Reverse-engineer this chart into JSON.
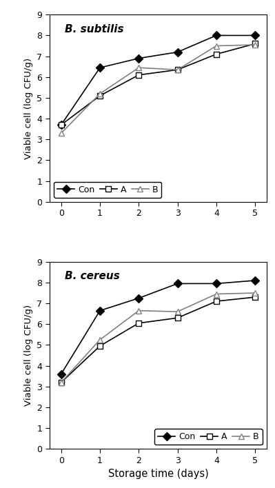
{
  "x": [
    0,
    1,
    2,
    3,
    4,
    5
  ],
  "subtilis": {
    "Con": [
      3.7,
      6.45,
      6.9,
      7.2,
      8.0,
      8.0
    ],
    "A": [
      3.7,
      5.1,
      6.1,
      6.35,
      7.1,
      7.6
    ],
    "B": [
      3.3,
      5.2,
      6.45,
      6.35,
      7.5,
      7.55
    ]
  },
  "cereus": {
    "Con": [
      3.6,
      6.65,
      7.25,
      7.95,
      7.95,
      8.1
    ],
    "A": [
      3.2,
      4.95,
      6.05,
      6.3,
      7.1,
      7.3
    ],
    "B": [
      3.2,
      5.25,
      6.65,
      6.6,
      7.45,
      7.5
    ]
  },
  "ylim": [
    0,
    9
  ],
  "yticks": [
    0,
    1,
    2,
    3,
    4,
    5,
    6,
    7,
    8,
    9
  ],
  "xticks": [
    0,
    1,
    2,
    3,
    4,
    5
  ],
  "ylabel": "Viable cell (log CFU/g)",
  "xlabel": "Storage time (days)",
  "label_subtilis": "B. subtilis",
  "label_cereus": "B. cereus",
  "legend_labels": [
    "Con",
    "A",
    "B"
  ],
  "line_color_con": "#000000",
  "line_color_a": "#000000",
  "line_color_b": "#808080",
  "bg_color": "#ffffff"
}
